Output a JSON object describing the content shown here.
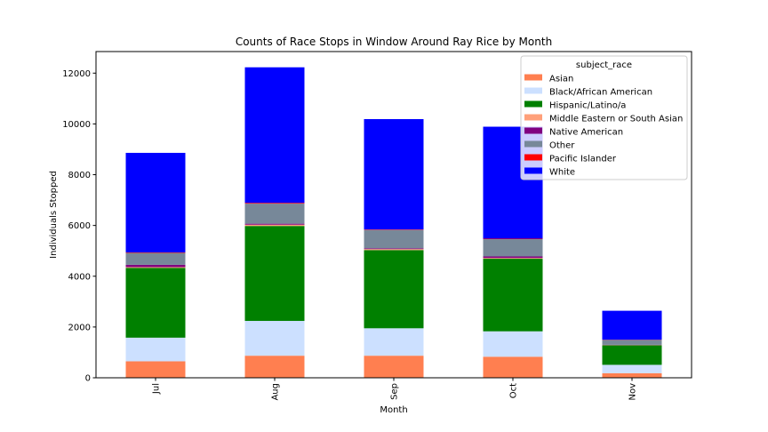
{
  "chart_data": {
    "type": "bar",
    "stacked": true,
    "title": "Counts of Race Stops in Window Around Ray Rice by Month",
    "xlabel": "Month",
    "ylabel": "Individuals Stopped",
    "categories": [
      "Jul",
      "Aug",
      "Sep",
      "Oct",
      "Nov"
    ],
    "ylim": [
      0,
      12850
    ],
    "yticks": [
      0,
      2000,
      4000,
      6000,
      8000,
      10000,
      12000
    ],
    "grid": false,
    "legend": {
      "title": "subject_race",
      "placement": "top-right"
    },
    "series": [
      {
        "name": "Asian",
        "color": "#ff7f50",
        "values": [
          650,
          870,
          870,
          830,
          180
        ]
      },
      {
        "name": "Black/African American",
        "color": "#cce0ff",
        "values": [
          930,
          1370,
          1080,
          1000,
          330
        ]
      },
      {
        "name": "Hispanic/Latino/a",
        "color": "#008000",
        "values": [
          2750,
          3740,
          3080,
          2860,
          770
        ]
      },
      {
        "name": "Middle Eastern or South Asian",
        "color": "#ffa07a",
        "values": [
          30,
          50,
          40,
          30,
          10
        ]
      },
      {
        "name": "Native American",
        "color": "#800080",
        "values": [
          90,
          40,
          30,
          60,
          10
        ]
      },
      {
        "name": "Other",
        "color": "#778899",
        "values": [
          470,
          790,
          720,
          680,
          190
        ]
      },
      {
        "name": "Pacific Islander",
        "color": "#ff0000",
        "values": [
          20,
          30,
          20,
          20,
          10
        ]
      },
      {
        "name": "White",
        "color": "#0000ff",
        "values": [
          3920,
          5340,
          4350,
          4410,
          1140
        ]
      }
    ]
  }
}
